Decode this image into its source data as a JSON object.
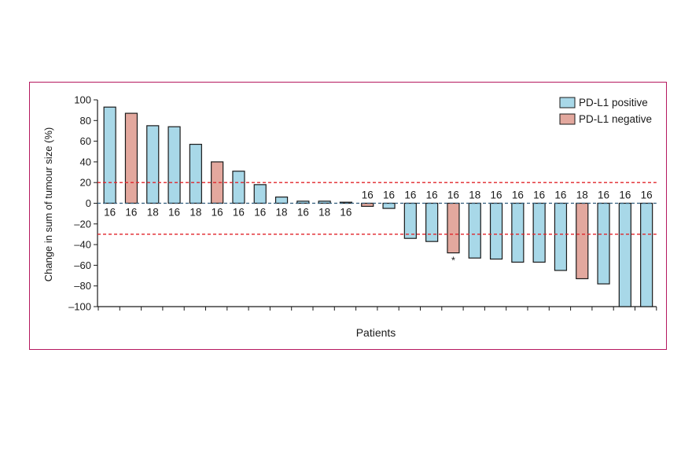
{
  "chart_data": {
    "type": "bar",
    "title": "",
    "xlabel": "Patients",
    "ylabel": "Change in sum of tumour size (%)",
    "ylim": [
      -100,
      100
    ],
    "yticks": [
      100,
      80,
      60,
      40,
      20,
      0,
      -20,
      -40,
      -60,
      -80,
      -100
    ],
    "ytick_labels": [
      "100",
      "80",
      "60",
      "40",
      "20",
      "0",
      "–20",
      "–40",
      "–60",
      "–80",
      "–100"
    ],
    "reference_lines": [
      20,
      -30
    ],
    "legend": {
      "position": "top-right",
      "entries": [
        {
          "label": "PD-L1 positive",
          "color": "#a8d8e8"
        },
        {
          "label": "PD-L1 negative",
          "color": "#e3a89e"
        }
      ]
    },
    "values": [
      93,
      87,
      75,
      74,
      57,
      40,
      31,
      18,
      6,
      2,
      2,
      1,
      -3,
      -5,
      -34,
      -37,
      -48,
      -53,
      -54,
      -57,
      -57,
      -65,
      -73,
      -78,
      -100,
      -100
    ],
    "groups": [
      "positive",
      "negative",
      "positive",
      "positive",
      "positive",
      "negative",
      "positive",
      "positive",
      "positive",
      "positive",
      "positive",
      "positive",
      "negative",
      "positive",
      "positive",
      "positive",
      "negative",
      "positive",
      "positive",
      "positive",
      "positive",
      "positive",
      "negative",
      "positive",
      "positive",
      "positive"
    ],
    "bar_labels": [
      "16",
      "16",
      "18",
      "16",
      "18",
      "16",
      "16",
      "16",
      "18",
      "16",
      "18",
      "16",
      "16",
      "16",
      "16",
      "16",
      "16",
      "18",
      "16",
      "16",
      "16",
      "16",
      "18",
      "16",
      "16",
      "16"
    ],
    "annotations": [
      {
        "bar_index": 16,
        "text": "*"
      }
    ]
  },
  "colors": {
    "positive": "#a8d8e8",
    "negative": "#e3a89e",
    "reference_line": "#e0242a",
    "zero_line": "#2f5b7a",
    "frame": "#b5185f"
  }
}
